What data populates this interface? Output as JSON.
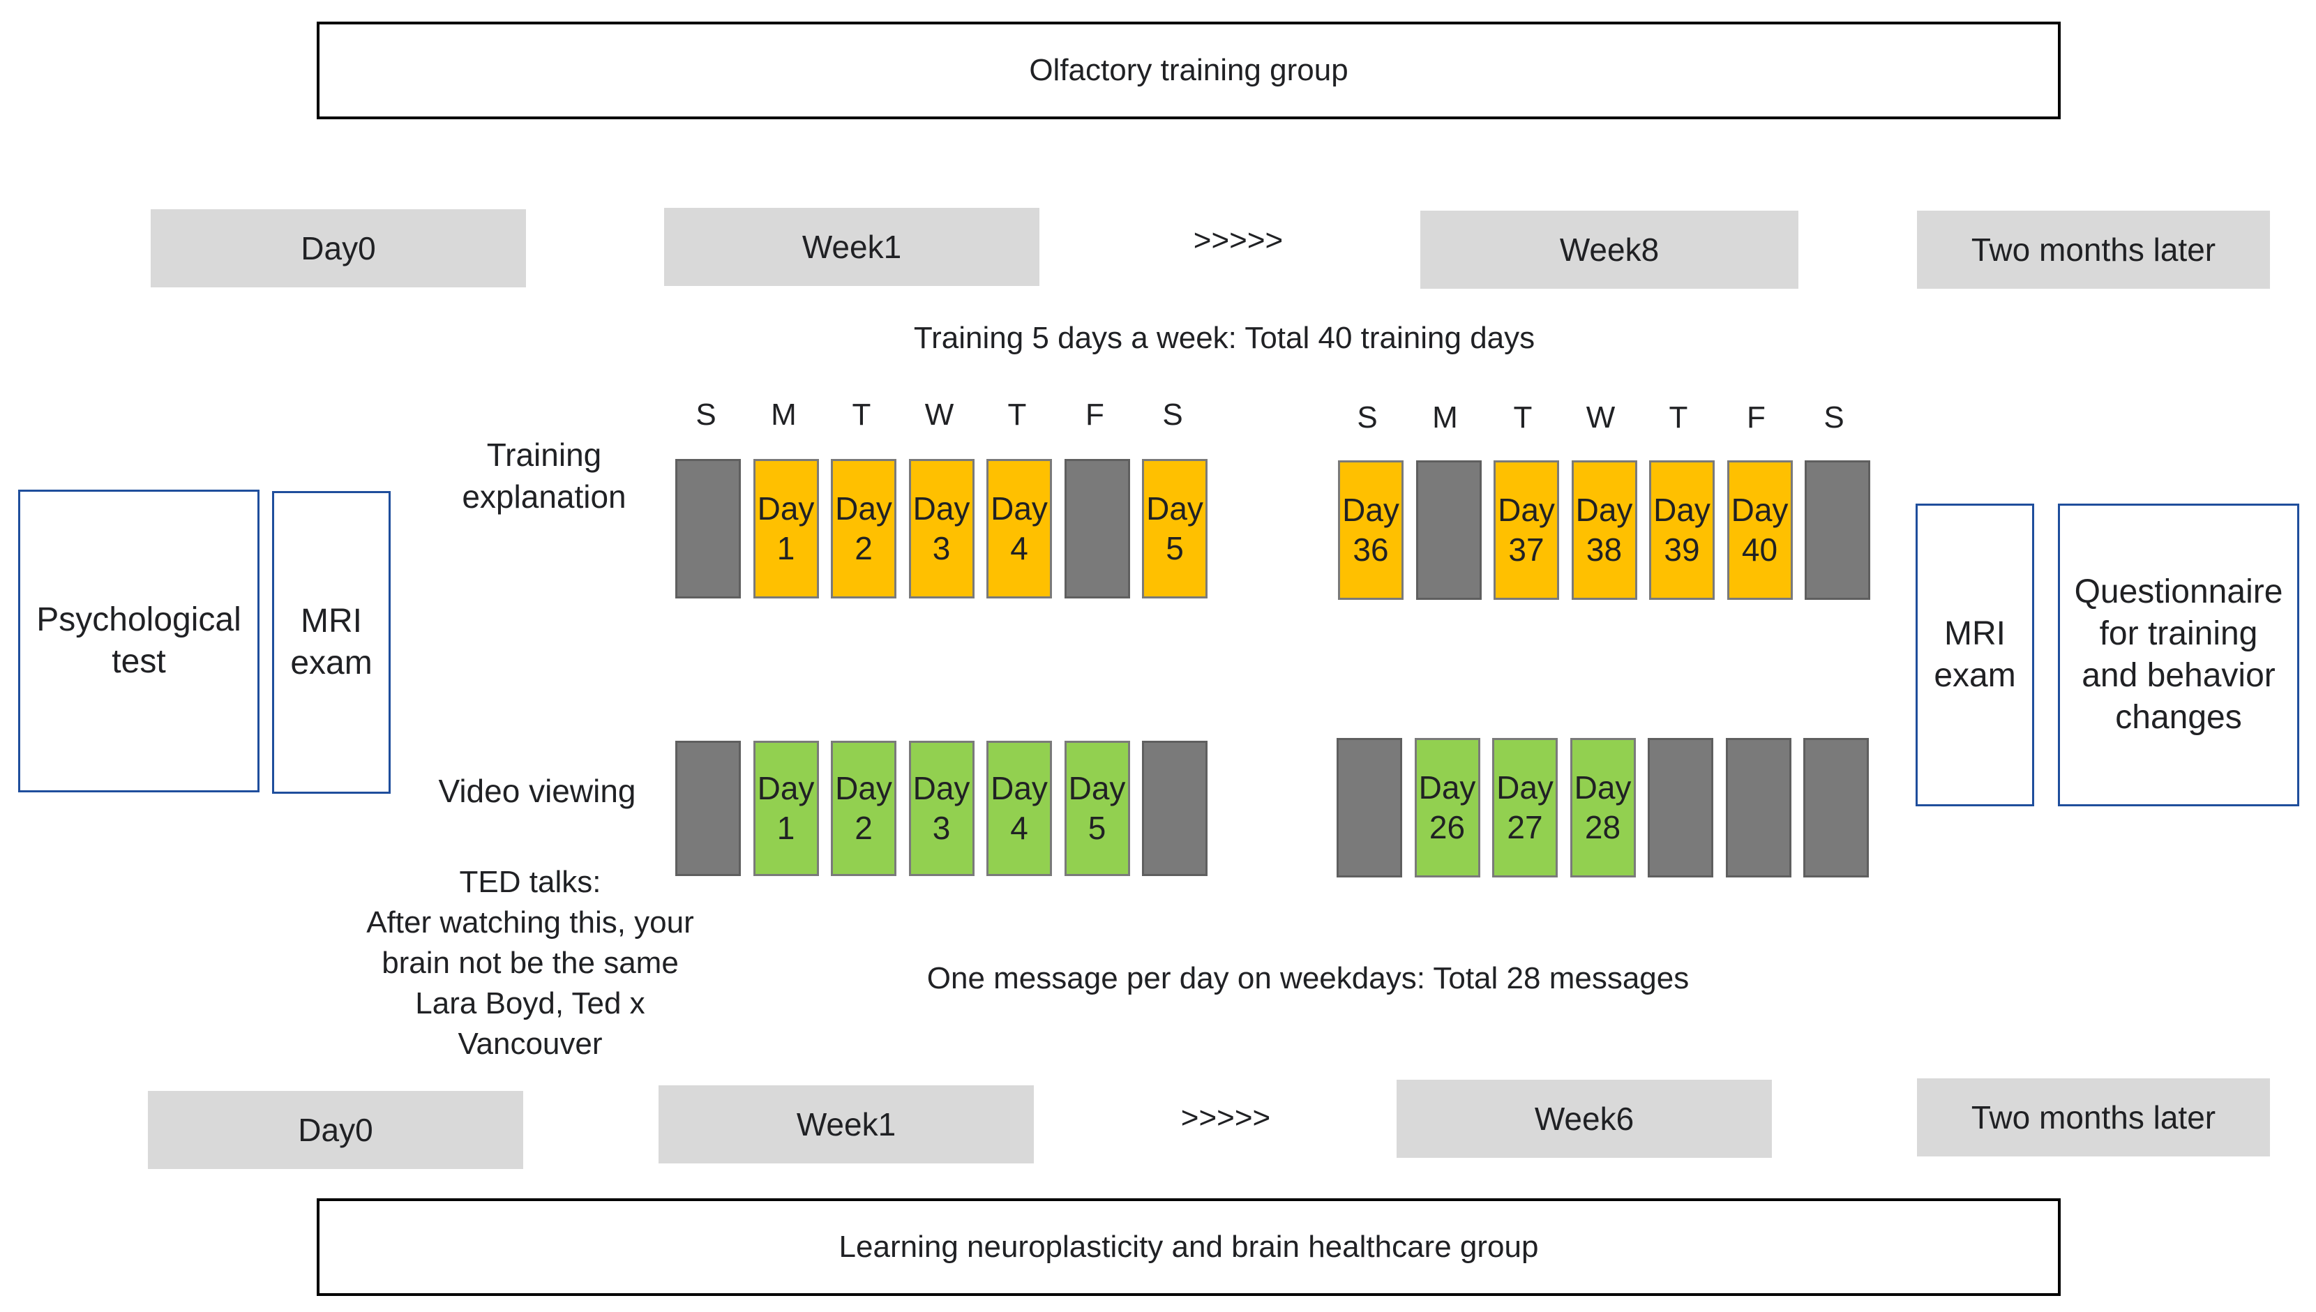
{
  "colors": {
    "training_day": "#ffc000",
    "video_day": "#92d050",
    "off_day": "#7a7a7a",
    "phase_bg": "#d9d9d9",
    "exam_border": "#1f4e9c"
  },
  "top_group": {
    "title": "Olfactory training group",
    "phases": {
      "start": "Day0",
      "first": "Week1",
      "arrows": ">>>>>",
      "last": "Week8",
      "followup": "Two months later"
    },
    "summary": "Training 5 days a week: Total 40 training days",
    "activity": "Training explanation"
  },
  "bottom_group": {
    "title": "Learning neuroplasticity and brain healthcare group",
    "phases": {
      "start": "Day0",
      "first": "Week1",
      "arrows": ">>>>>",
      "last": "Week6",
      "followup": "Two months later"
    },
    "summary": "One message per day on weekdays: Total 28 messages",
    "activity": "Video viewing",
    "ted_note": "TED talks:\nAfter watching this, your\nbrain not be the same\nLara Boyd, Ted x\nVancouver"
  },
  "left_boxes": {
    "psych": "Psychological\ntest",
    "mri": "MRI\nexam"
  },
  "right_boxes": {
    "mri": "MRI\nexam",
    "questionnaire": "Questionnaire\nfor training\nand behavior\nchanges"
  },
  "weekdays": [
    "S",
    "M",
    "T",
    "W",
    "T",
    "F",
    "S"
  ],
  "day_label": "Day",
  "schedule": {
    "training_week1": [
      null,
      "1",
      "2",
      "3",
      "4",
      null,
      "5"
    ],
    "training_week8": [
      "36",
      null,
      "37",
      "38",
      "39",
      "40",
      null
    ],
    "video_week1": [
      null,
      "1",
      "2",
      "3",
      "4",
      "5",
      null
    ],
    "video_week6": [
      null,
      "26",
      "27",
      "28",
      null,
      null,
      null
    ]
  }
}
